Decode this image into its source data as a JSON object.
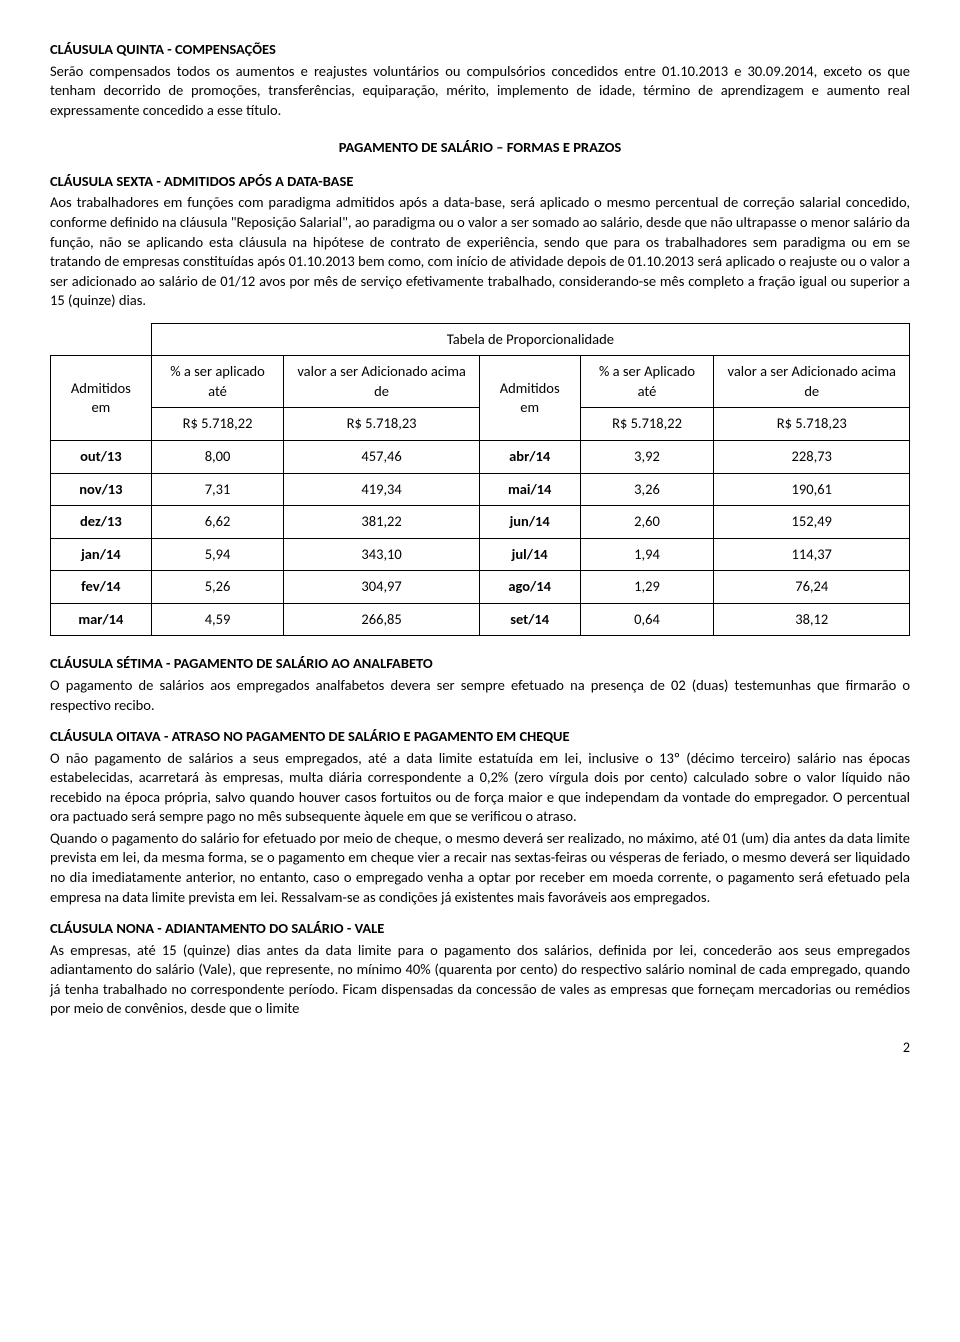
{
  "page_number": "2",
  "c5": {
    "title": "CLÁUSULA QUINTA - COMPENSAÇÕES",
    "body": "Serão compensados todos os aumentos e reajustes voluntários ou compulsórios concedidos entre 01.10.2013 e 30.09.2014, exceto os que tenham decorrido de promoções, transferências, equiparação, mérito, implemento de idade, término de aprendizagem e aumento real expressamente concedido a esse título."
  },
  "section_pay_title": "PAGAMENTO DE SALÁRIO – FORMAS E PRAZOS",
  "c6": {
    "title": "CLÁUSULA SEXTA - ADMITIDOS APÓS A DATA-BASE",
    "body": "Aos trabalhadores em funções com paradigma admitidos após a data-base, será aplicado o mesmo percentual de correção salarial concedido, conforme definido na cláusula \"Reposição Salarial\", ao paradigma ou o valor a ser somado ao salário, desde que não ultrapasse o menor salário da função, não se aplicando esta cláusula na hipótese de contrato de experiência, sendo que para os trabalhadores sem paradigma ou em se tratando de empresas constituídas após 01.10.2013 bem como, com início de atividade depois de 01.10.2013 será aplicado o reajuste ou o valor a ser adicionado ao salário de 01/12 avos por mês de serviço efetivamente trabalhado, considerando-se mês completo a fração igual ou superior a 15 (quinze) dias."
  },
  "table": {
    "caption": "Tabela de Proporcionalidade",
    "head_admitidos": "Admitidos em",
    "head_pct_ate": "% a ser aplicado até",
    "head_pct_aplicado_ate": "% a ser Aplicado até",
    "head_val_acima": "valor a ser Adicionado acima de",
    "ref1": "R$ 5.718,22",
    "ref2": "R$ 5.718,23",
    "rows": [
      {
        "m1": "out/13",
        "p1": "8,00",
        "v1": "457,46",
        "m2": "abr/14",
        "p2": "3,92",
        "v2": "228,73"
      },
      {
        "m1": "nov/13",
        "p1": "7,31",
        "v1": "419,34",
        "m2": "mai/14",
        "p2": "3,26",
        "v2": "190,61"
      },
      {
        "m1": "dez/13",
        "p1": "6,62",
        "v1": "381,22",
        "m2": "jun/14",
        "p2": "2,60",
        "v2": "152,49"
      },
      {
        "m1": "jan/14",
        "p1": "5,94",
        "v1": "343,10",
        "m2": "jul/14",
        "p2": "1,94",
        "v2": "114,37"
      },
      {
        "m1": "fev/14",
        "p1": "5,26",
        "v1": "304,97",
        "m2": "ago/14",
        "p2": "1,29",
        "v2": "76,24"
      },
      {
        "m1": "mar/14",
        "p1": "4,59",
        "v1": "266,85",
        "m2": "set/14",
        "p2": "0,64",
        "v2": "38,12"
      }
    ]
  },
  "c7": {
    "title": "CLÁUSULA SÉTIMA - PAGAMENTO DE SALÁRIO AO ANALFABETO",
    "body": "O pagamento de salários aos empregados analfabetos devera ser sempre efetuado na presença de 02 (duas) testemunhas que firmarão o respectivo recibo."
  },
  "c8": {
    "title": "CLÁUSULA OITAVA - ATRASO NO PAGAMENTO DE SALÁRIO E PAGAMENTO EM CHEQUE",
    "p1": "O não pagamento de salários a seus empregados, até a data limite estatuída em lei, inclusive o 13º (décimo terceiro) salário nas épocas estabelecidas, acarretará às empresas, multa diária correspondente a 0,2% (zero vírgula dois por cento) calculado sobre o valor líquido não recebido na época própria, salvo quando houver casos fortuitos ou de força maior e que independam da vontade do empregador. O percentual ora pactuado será sempre pago no mês subsequente àquele em que se verificou o atraso.",
    "p2": "Quando o pagamento do salário for efetuado por meio de cheque, o mesmo deverá ser realizado, no máximo, até 01 (um) dia antes da data limite prevista em lei, da mesma forma, se o pagamento em cheque vier a recair nas sextas-feiras ou vésperas de feriado, o mesmo deverá ser liquidado no dia imediatamente anterior, no entanto, caso o empregado venha a optar por receber em moeda corrente, o pagamento será efetuado pela empresa na data limite prevista em lei. Ressalvam-se as condições já existentes mais favoráveis aos empregados."
  },
  "c9": {
    "title": "CLÁUSULA NONA - ADIANTAMENTO DO SALÁRIO - VALE",
    "body": "As empresas, até 15 (quinze) dias antes da data limite para o pagamento dos salários, definida por lei, concederão aos seus empregados adiantamento do salário (Vale), que represente, no mínimo 40% (quarenta por cento) do respectivo salário nominal de cada empregado, quando já tenha trabalhado no correspondente período. Ficam dispensadas da concessão de vales as empresas que forneçam mercadorias ou remédios por meio de convênios, desde que o limite"
  }
}
